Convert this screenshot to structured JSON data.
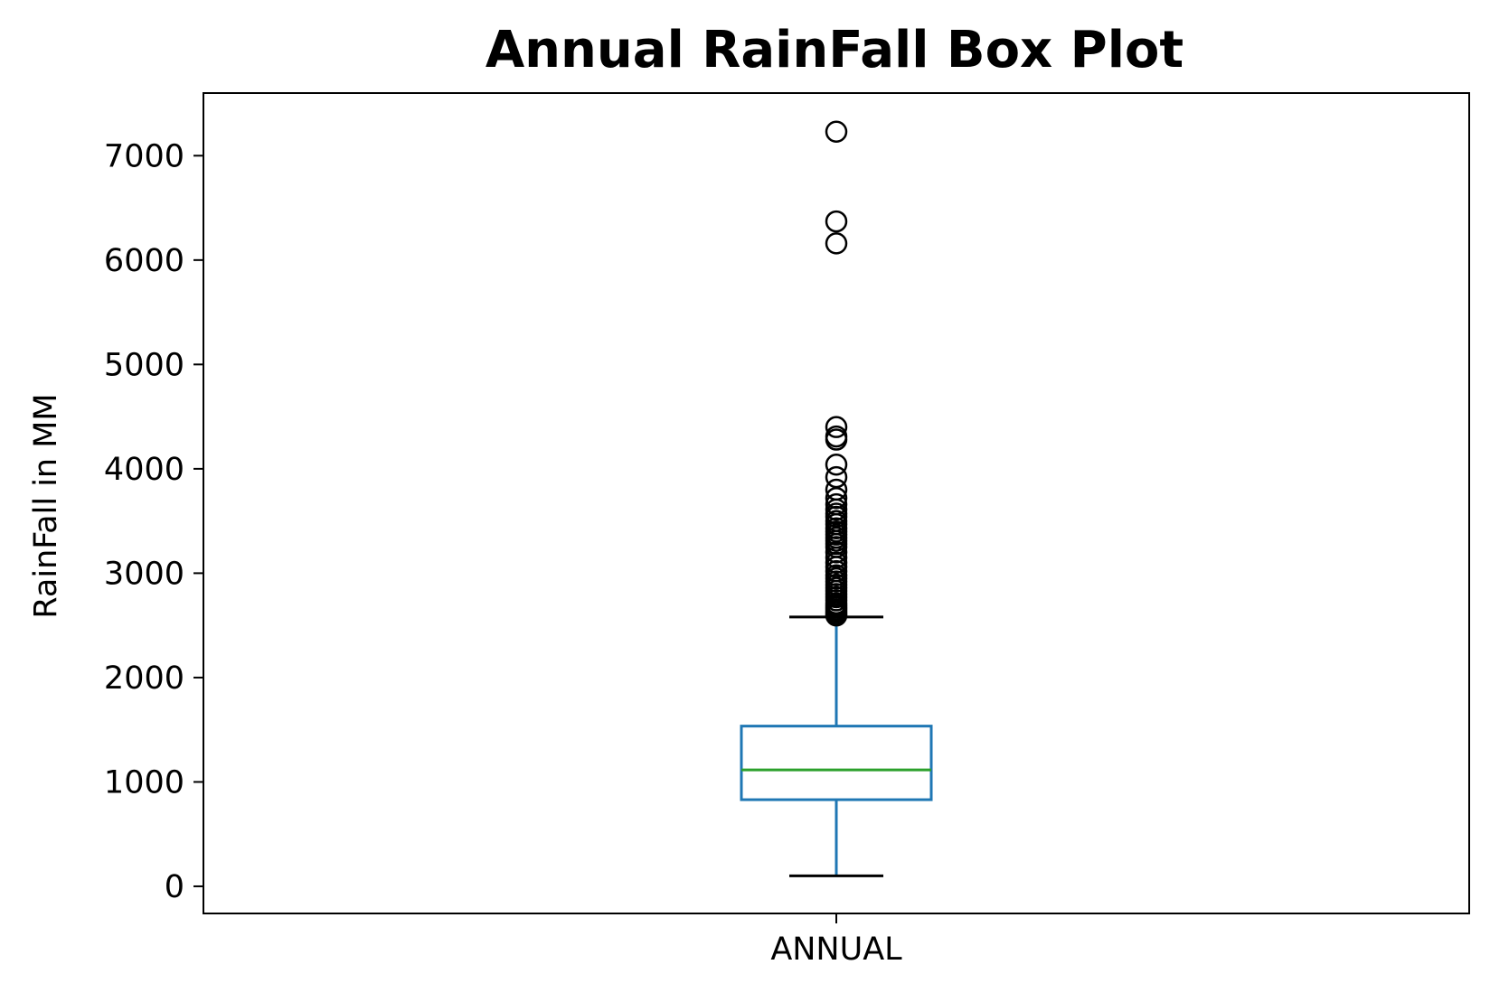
{
  "chart_data": {
    "type": "box",
    "title": "Annual RainFall Box Plot",
    "xlabel": "",
    "ylabel": "RainFall in MM",
    "categories": [
      "ANNUAL"
    ],
    "ylim": [
      -260,
      7600
    ],
    "yticks": [
      0,
      1000,
      2000,
      3000,
      4000,
      5000,
      6000,
      7000
    ],
    "ytick_labels": [
      "0",
      "1000",
      "2000",
      "3000",
      "4000",
      "5000",
      "6000",
      "7000"
    ],
    "grid": false,
    "box": {
      "category": "ANNUAL",
      "whisker_low": 100,
      "q1": 830,
      "median": 1115,
      "q3": 1535,
      "whisker_high": 2580
    },
    "outliers": [
      7230,
      6370,
      6160,
      4400,
      4310,
      4280,
      4040,
      3920,
      3800,
      3720,
      3660,
      3610,
      3570,
      3540,
      3500,
      3470,
      3430,
      3400,
      3370,
      3340,
      3310,
      3280,
      3250,
      3200,
      3150,
      3100,
      3060,
      3020,
      2980,
      2950,
      2920,
      2890,
      2860,
      2830,
      2800,
      2770,
      2740,
      2710,
      2690,
      2670,
      2650,
      2630,
      2610,
      2595
    ],
    "colors": {
      "box": "#1f77b4",
      "median": "#2ca02c",
      "caps": "#000000",
      "outliers": "#000000"
    }
  }
}
